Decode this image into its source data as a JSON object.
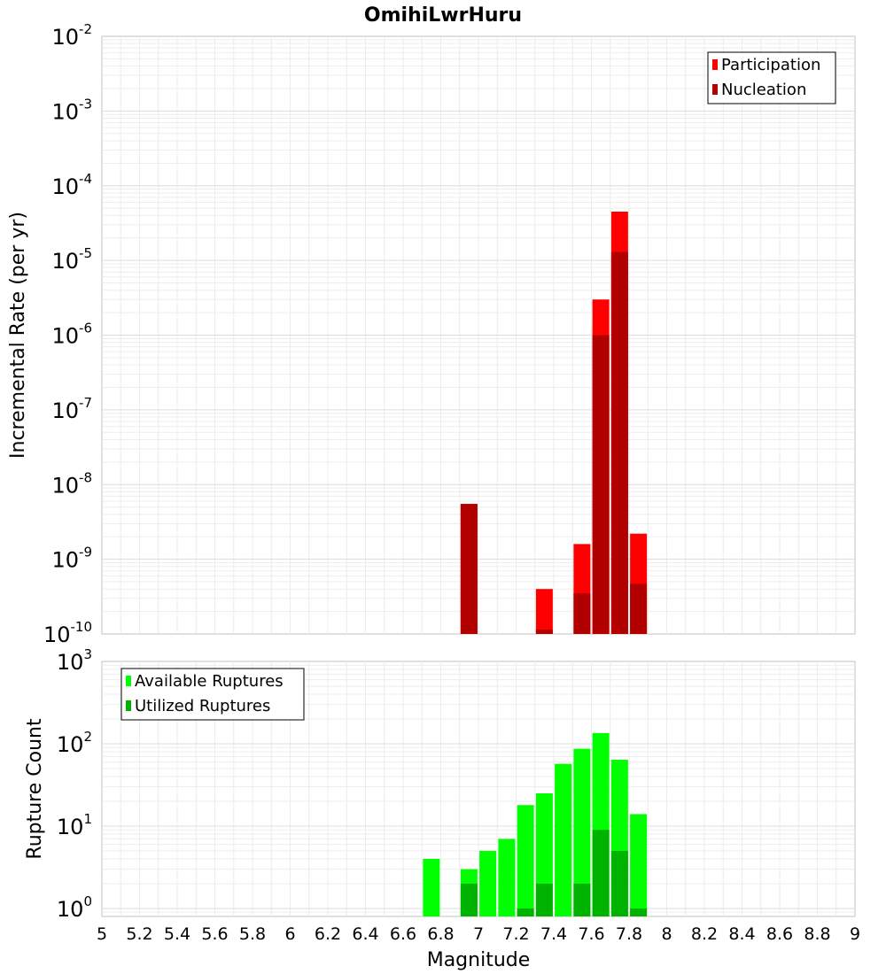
{
  "chart_data": [
    {
      "type": "bar",
      "panel": "top",
      "title": "OmihiLwrHuru",
      "xlabel": "",
      "ylabel": "Incremental Rate (per yr)",
      "yscale": "log",
      "ylim": [
        1e-10,
        0.01
      ],
      "xlim": [
        5,
        9
      ],
      "grid": true,
      "legend_position": "top-right",
      "y_ticks": [
        {
          "base": "10",
          "exp": "-10"
        },
        {
          "base": "10",
          "exp": "-9"
        },
        {
          "base": "10",
          "exp": "-8"
        },
        {
          "base": "10",
          "exp": "-7"
        },
        {
          "base": "10",
          "exp": "-6"
        },
        {
          "base": "10",
          "exp": "-5"
        },
        {
          "base": "10",
          "exp": "-4"
        },
        {
          "base": "10",
          "exp": "-3"
        },
        {
          "base": "10",
          "exp": "-2"
        }
      ],
      "series": [
        {
          "name": "Participation",
          "color": "#ff0000",
          "x": [
            6.95,
            7.35,
            7.55,
            7.65,
            7.75,
            7.85
          ],
          "values": [
            5.5e-09,
            4e-10,
            1.6e-09,
            3e-06,
            4.5e-05,
            2.2e-09
          ]
        },
        {
          "name": "Nucleation",
          "color": "#b20000",
          "x": [
            6.95,
            7.35,
            7.55,
            7.65,
            7.75,
            7.85
          ],
          "values": [
            5.5e-09,
            1.15e-10,
            3.5e-10,
            1e-06,
            1.3e-05,
            4.7e-10
          ]
        }
      ]
    },
    {
      "type": "bar",
      "panel": "bottom",
      "title": "",
      "xlabel": "Magnitude",
      "ylabel": "Rupture Count",
      "yscale": "log",
      "ylim": [
        0.8,
        1000
      ],
      "xlim": [
        5,
        9
      ],
      "grid": true,
      "legend_position": "top-left",
      "x_ticks": [
        "5",
        "5.2",
        "5.4",
        "5.6",
        "5.8",
        "6",
        "6.2",
        "6.4",
        "6.6",
        "6.8",
        "7",
        "7.2",
        "7.4",
        "7.6",
        "7.8",
        "8",
        "8.2",
        "8.4",
        "8.6",
        "8.8",
        "9"
      ],
      "y_ticks": [
        {
          "base": "10",
          "exp": "0"
        },
        {
          "base": "10",
          "exp": "1"
        },
        {
          "base": "10",
          "exp": "2"
        },
        {
          "base": "10",
          "exp": "3"
        }
      ],
      "series": [
        {
          "name": "Available Ruptures",
          "color": "#00ff00",
          "x": [
            6.75,
            6.95,
            7.05,
            7.15,
            7.25,
            7.35,
            7.45,
            7.55,
            7.65,
            7.75,
            7.85
          ],
          "values": [
            4,
            3,
            5,
            7,
            18,
            25,
            57,
            87,
            135,
            64,
            14
          ]
        },
        {
          "name": "Utilized Ruptures",
          "color": "#00b200",
          "x": [
            6.95,
            7.25,
            7.35,
            7.55,
            7.65,
            7.75,
            7.85
          ],
          "values": [
            2,
            1,
            2,
            2,
            9,
            5,
            1
          ]
        }
      ]
    }
  ]
}
